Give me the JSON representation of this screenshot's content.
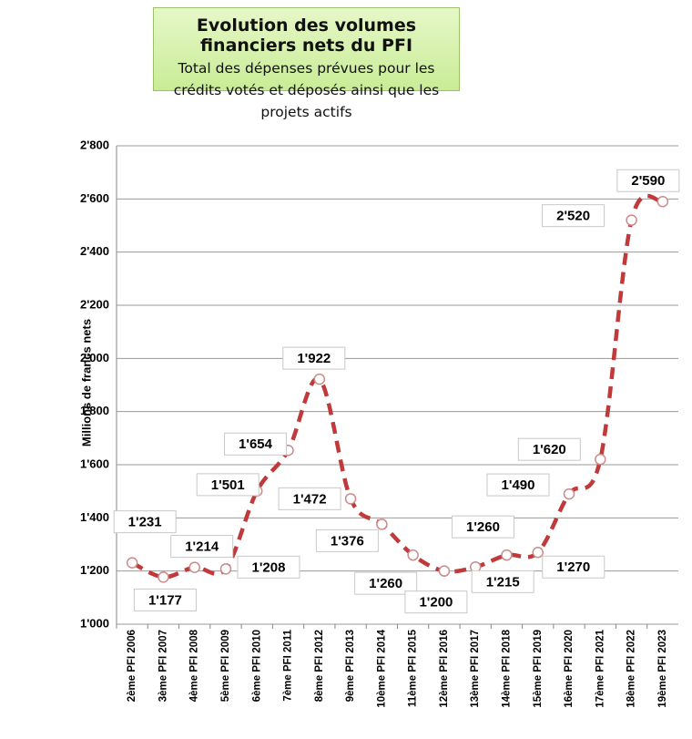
{
  "chart_data": {
    "type": "line",
    "title": "Evolution des volumes financiers nets du PFI",
    "subtitle": "Total des dépenses prévues pour les crédits votés et déposés ainsi que les projets actifs",
    "y_label": "Millions de francs nets",
    "categories": [
      "2ème PFI 2006",
      "3ème PFI 2007",
      "4ème PFI 2008",
      "5ème PFI 2009",
      "6ème PFI 2010",
      "7ème PFI 2011",
      "8ème PFI 2012",
      "9ème PFI 2013",
      "10ème PFI 2014",
      "11ème PFI 2015",
      "12ème PFI 2016",
      "13ème PFI 2017",
      "14ème PFI 2018",
      "15ème PFI 2019",
      "16ème PFI 2020",
      "17ème PFI 2021",
      "18ème PFI 2022",
      "19ème PFI 2023"
    ],
    "series": [
      {
        "name": "Volumes financiers nets",
        "color": "#c0393b",
        "values": [
          1231,
          1177,
          1214,
          1208,
          1501,
          1654,
          1922,
          1472,
          1376,
          1260,
          1200,
          1215,
          1260,
          1270,
          1490,
          1620,
          2520,
          2590
        ],
        "value_labels": [
          "1'231",
          "1'177",
          "1'214",
          "1'208",
          "1'501",
          "1'654",
          "1'922",
          "1'472",
          "1'376",
          "1'260",
          "1'200",
          "1'215",
          "1'260",
          "1'270",
          "1'490",
          "1'620",
          "2'520",
          "2'590"
        ]
      }
    ],
    "ylim": [
      1000,
      2800
    ],
    "yticks": [
      {
        "value": 1000,
        "label": "1'000"
      },
      {
        "value": 1200,
        "label": "1'200"
      },
      {
        "value": 1400,
        "label": "1'400"
      },
      {
        "value": 1600,
        "label": "1'600"
      },
      {
        "value": 1800,
        "label": "1'800"
      },
      {
        "value": 2000,
        "label": "2'000"
      },
      {
        "value": 2200,
        "label": "2'200"
      },
      {
        "value": 2400,
        "label": "2'400"
      },
      {
        "value": 2600,
        "label": "2'600"
      },
      {
        "value": 2800,
        "label": "2'800"
      }
    ],
    "grid": true
  }
}
